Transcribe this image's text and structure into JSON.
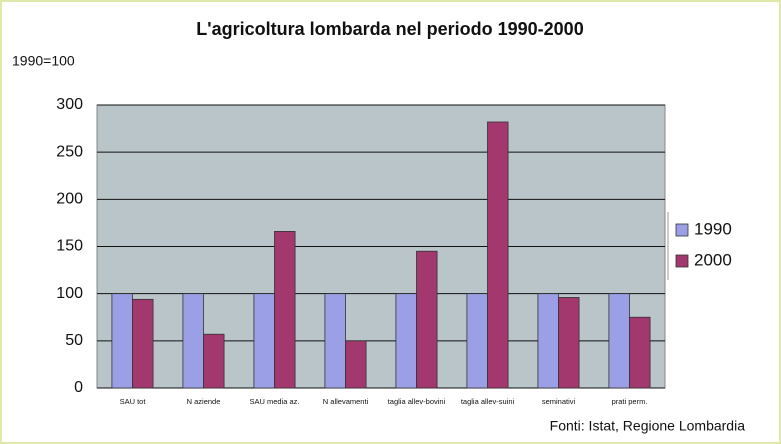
{
  "chart_data": {
    "type": "bar",
    "title": "L'agricoltura lombarda nel periodo 1990-2000",
    "subtitle": "1990=100",
    "source": "Fonti: Istat, Regione Lombardia",
    "categories": [
      "SAU tot",
      "N aziende",
      "SAU media az.",
      "N allevamenti",
      "taglia allev-bovini",
      "taglia allev-suini",
      "seminativi",
      "prati perm."
    ],
    "series": [
      {
        "name": "1990",
        "color": "#9a9fe6",
        "values": [
          100,
          100,
          100,
          100,
          100,
          100,
          100,
          100
        ]
      },
      {
        "name": "2000",
        "color": "#a3386f",
        "values": [
          94,
          57,
          166,
          50,
          145,
          282,
          96,
          75
        ]
      }
    ],
    "ylim": [
      0,
      300
    ],
    "yticks": [
      0,
      50,
      100,
      150,
      200,
      250,
      300
    ],
    "grid": true,
    "legend": "right"
  }
}
